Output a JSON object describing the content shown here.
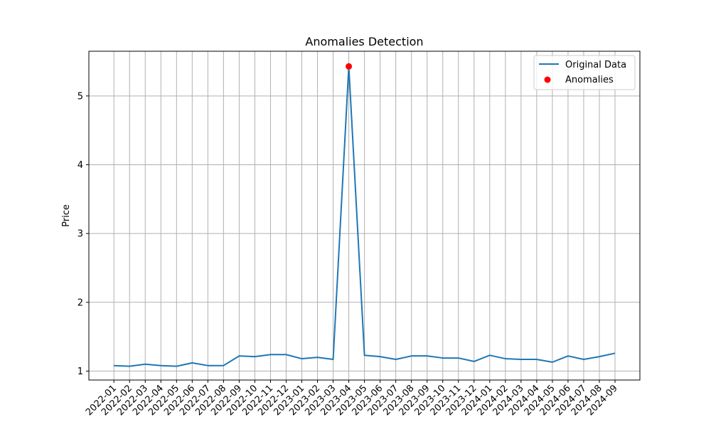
{
  "chart_data": {
    "type": "line",
    "title": "Anomalies Detection",
    "xlabel": "",
    "ylabel": "Price",
    "x": [
      "2022-01",
      "2022-02",
      "2022-03",
      "2022-04",
      "2022-05",
      "2022-06",
      "2022-07",
      "2022-08",
      "2022-09",
      "2022-10",
      "2022-11",
      "2022-12",
      "2023-01",
      "2023-02",
      "2023-03",
      "2023-04",
      "2023-05",
      "2023-06",
      "2023-07",
      "2023-08",
      "2023-09",
      "2023-10",
      "2023-11",
      "2023-12",
      "2024-01",
      "2024-02",
      "2024-03",
      "2024-04",
      "2024-05",
      "2024-06",
      "2024-07",
      "2024-08",
      "2024-09"
    ],
    "series": [
      {
        "name": "Original Data",
        "color": "#1f77b4",
        "values": [
          1.08,
          1.07,
          1.1,
          1.08,
          1.07,
          1.12,
          1.08,
          1.08,
          1.22,
          1.21,
          1.24,
          1.24,
          1.18,
          1.2,
          1.17,
          5.43,
          1.23,
          1.21,
          1.17,
          1.22,
          1.22,
          1.19,
          1.19,
          1.14,
          1.23,
          1.18,
          1.17,
          1.17,
          1.13,
          1.22,
          1.17,
          1.21,
          1.26
        ]
      }
    ],
    "anomalies": {
      "name": "Anomalies",
      "color": "#ff0000",
      "points": [
        {
          "x": "2023-04",
          "y": 5.43
        }
      ]
    },
    "yticks": [
      1,
      2,
      3,
      4,
      5
    ],
    "ylim": [
      0.87,
      5.65
    ],
    "grid": true,
    "legend": "top-right"
  }
}
